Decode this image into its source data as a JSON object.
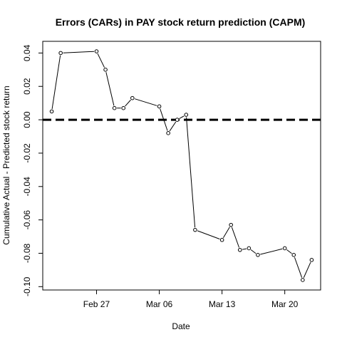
{
  "chart_data": {
    "type": "line",
    "title": "Errors (CARs) in PAY stock return prediction (CAPM)",
    "xlabel": "Date",
    "ylabel": "Cumulative Actual - Predicted stock return",
    "x_tick_labels": [
      "Feb 27",
      "Mar 06",
      "Mar 13",
      "Mar 20"
    ],
    "x_tick_dates": [
      "2017-02-27",
      "2017-03-06",
      "2017-03-13",
      "2017-03-20"
    ],
    "y_ticks": [
      -0.1,
      -0.08,
      -0.06,
      -0.04,
      -0.02,
      0.0,
      0.02,
      0.04
    ],
    "y_tick_labels": [
      "-0.10",
      "-0.08",
      "-0.06",
      "-0.04",
      "-0.02",
      "0.00",
      "0.02",
      "0.04"
    ],
    "ylim": [
      -0.102,
      0.047
    ],
    "xlim": [
      "2017-02-21",
      "2017-03-24"
    ],
    "reference_line": {
      "y": 0,
      "style": "dashed"
    },
    "series": [
      {
        "x": [
          "2017-02-22",
          "2017-02-23",
          "2017-02-27",
          "2017-02-28",
          "2017-03-01",
          "2017-03-02",
          "2017-03-03",
          "2017-03-06",
          "2017-03-07",
          "2017-03-08",
          "2017-03-09",
          "2017-03-10",
          "2017-03-13",
          "2017-03-14",
          "2017-03-15",
          "2017-03-16",
          "2017-03-17",
          "2017-03-20",
          "2017-03-21",
          "2017-03-22",
          "2017-03-23"
        ],
        "y": [
          0.005,
          0.04,
          0.041,
          0.03,
          0.007,
          0.007,
          0.013,
          0.008,
          -0.008,
          0.0,
          0.003,
          -0.066,
          -0.072,
          -0.063,
          -0.078,
          -0.077,
          -0.081,
          -0.077,
          -0.081,
          -0.096,
          -0.084
        ]
      }
    ],
    "colors": {
      "line": "#000000",
      "marker_fill": "#ffffff",
      "axis": "#000000"
    }
  }
}
